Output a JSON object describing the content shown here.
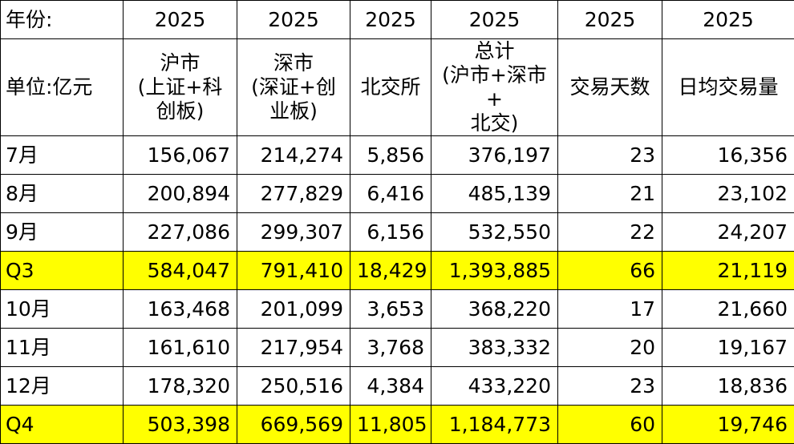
{
  "colors": {
    "highlight": "#ffff00",
    "grid": "#000000"
  },
  "year_row": {
    "label": "年份:",
    "values": [
      "2025",
      "2025",
      "2025",
      "2025",
      "2025",
      "2025"
    ]
  },
  "header_row": {
    "unit_label": "单位:亿元",
    "columns": [
      {
        "lines": [
          "沪市",
          "(上证+科",
          "创板)"
        ]
      },
      {
        "lines": [
          "深市",
          "(深证+创",
          "业板)"
        ]
      },
      {
        "lines": [
          "北交所"
        ]
      },
      {
        "lines": [
          "总计",
          "(沪市+深市+",
          "北交)"
        ]
      },
      {
        "lines": [
          "交易天数"
        ]
      },
      {
        "lines": [
          "日均交易量"
        ]
      }
    ]
  },
  "rows": [
    {
      "label": "7月",
      "values": [
        "156,067",
        "214,274",
        "5,856",
        "376,197",
        "23",
        "16,356"
      ]
    },
    {
      "label": "8月",
      "values": [
        "200,894",
        "277,829",
        "6,416",
        "485,139",
        "21",
        "23,102"
      ]
    },
    {
      "label": "9月",
      "values": [
        "227,086",
        "299,307",
        "6,156",
        "532,550",
        "22",
        "24,207"
      ]
    },
    {
      "label": "Q3",
      "values": [
        "584,047",
        "791,410",
        "18,429",
        "1,393,885",
        "66",
        "21,119"
      ]
    },
    {
      "label": "10月",
      "values": [
        "163,468",
        "201,099",
        "3,653",
        "368,220",
        "17",
        "21,660"
      ]
    },
    {
      "label": "11月",
      "values": [
        "161,610",
        "217,954",
        "3,768",
        "383,332",
        "20",
        "19,167"
      ]
    },
    {
      "label": "12月",
      "values": [
        "178,320",
        "250,516",
        "4,384",
        "433,220",
        "23",
        "18,836"
      ]
    },
    {
      "label": "Q4",
      "values": [
        "503,398",
        "669,569",
        "11,805",
        "1,184,773",
        "60",
        "19,746"
      ]
    }
  ]
}
